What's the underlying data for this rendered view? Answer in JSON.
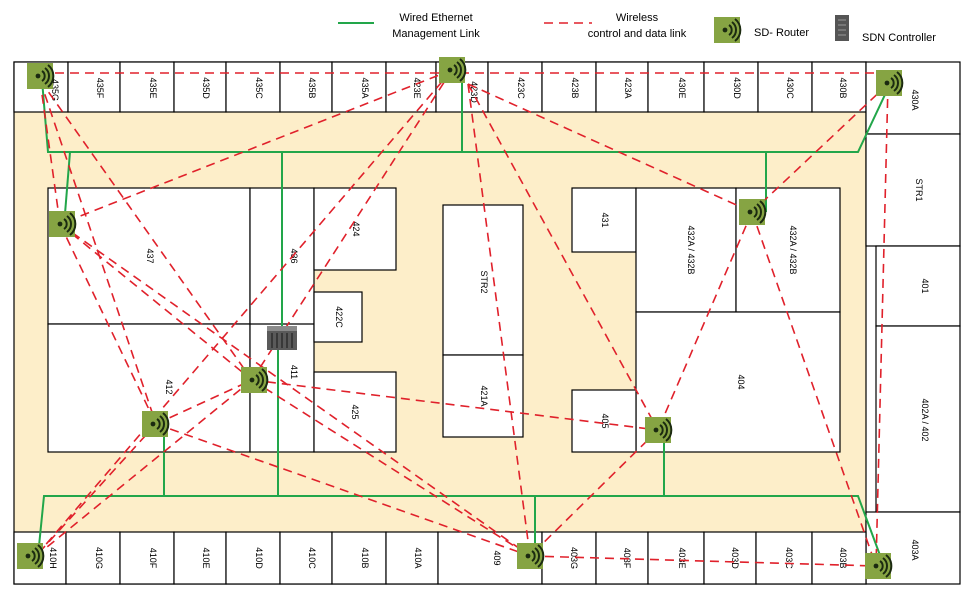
{
  "legend": {
    "wired_label_line1": "Wired Ethernet",
    "wired_label_line2": "Management Link",
    "wireless_label_line1": "Wireless",
    "wireless_label_line2": "control and data link",
    "router_label": "SD- Router",
    "controller_label": "SDN Controller",
    "wired_color": "#22a64a",
    "wireless_color": "#e0212b"
  },
  "colors": {
    "corridor": "#fdeec9",
    "router_fill": "#86a443",
    "room_fill": "#ffffff"
  },
  "icons": {
    "router": "wifi-router-icon",
    "controller": "server-icon"
  },
  "rooms": {
    "r435g": "435G",
    "r435f": "435F",
    "r435e": "435E",
    "r435d": "435D",
    "r435c": "435C",
    "r435b": "435B",
    "r435a": "435A",
    "r423e": "423E",
    "r423d": "423D",
    "r423c": "423C",
    "r423b": "423B",
    "r423a": "423A",
    "r430e": "430E",
    "r430d": "430D",
    "r430c": "430C",
    "r430b": "430B",
    "r430a": "430A",
    "rstr1": "STR1",
    "r401": "401",
    "r402": "402A / 402",
    "r403a": "403A",
    "r437": "437",
    "r436": "436",
    "r424": "424",
    "r422c": "422C",
    "r412": "412",
    "r411": "411",
    "r425": "425",
    "rstr2": "STR2",
    "r421a": "421A",
    "r431": "431",
    "r432a": "432A / 432B",
    "r432b": "432A / 432B",
    "r404": "404",
    "r405": "405",
    "r410h": "410H",
    "r410g": "410G",
    "r410f": "410F",
    "r410e": "410E",
    "r410d": "410D",
    "r410c": "410C",
    "r410b": "410B",
    "r410a": "410A",
    "r409": "409",
    "r403g": "403G",
    "r403f": "403F",
    "r403e": "403E",
    "r403d": "403D",
    "r403c": "403C",
    "r403b": "403B"
  }
}
